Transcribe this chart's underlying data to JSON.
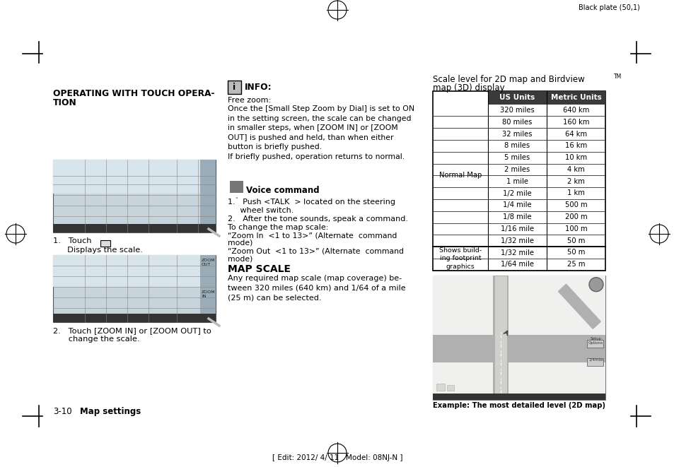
{
  "page_bg": "#ffffff",
  "top_text": "Black plate (50,1)",
  "bottom_text": "[ Edit: 2012/ 4/ 11   Model: 08NJ-N ]",
  "left_col": {
    "title_line1": "OPERATING WITH TOUCH OPERA-",
    "title_line2": "TION",
    "step1_a": "1.   Touch",
    "step1_b": "     Displays the scale.",
    "step2": "2.   Touch [ZOOM IN] or [ZOOM OUT] to\n      change the scale.",
    "footer_num": "3-10",
    "footer_label": "  Map settings"
  },
  "mid_col": {
    "info_title": "INFO:",
    "free_zoom_label": "Free zoom:",
    "free_zoom_body": "Once the [Small Step Zoom by Dial] is set to ON\nin the setting screen, the scale can be changed\nin smaller steps, when [ZOOM IN] or [ZOOM\nOUT] is pushed and held, than when either\nbutton is briefly pushed.\nIf briefly pushed, operation returns to normal.",
    "voice_title": "Voice command",
    "step1": "1.   Push <TALK  > located on the steering\n     wheel switch.",
    "step2": "2.   After the tone sounds, speak a command.",
    "zoom_label": "To change the map scale:",
    "zoom_in_a": "“Zoom In  <1 to 13>” (Alternate  command",
    "zoom_in_b": "mode)",
    "zoom_out_a": "“Zoom Out  <1 to 13>” (Alternate  command",
    "zoom_out_b": "mode)",
    "map_scale_title": "MAP SCALE",
    "map_scale_body": "Any required map scale (map coverage) be-\ntween 320 miles (640 km) and 1/64 of a mile\n(25 m) can be selected."
  },
  "right_col": {
    "scale_title_line1": "Scale level for 2D map and Birdview",
    "scale_title_line2": "map (3D) display",
    "col1_header": "US Units",
    "col2_header": "Metric Units",
    "row_label1": "Normal Map",
    "rows_normal": [
      [
        "320 miles",
        "640 km"
      ],
      [
        "80 miles",
        "160 km"
      ],
      [
        "32 miles",
        "64 km"
      ],
      [
        "8 miles",
        "16 km"
      ],
      [
        "5 miles",
        "10 km"
      ],
      [
        "2 miles",
        "4 km"
      ],
      [
        "1 mile",
        "2 km"
      ],
      [
        "1/2 mile",
        "1 km"
      ],
      [
        "1/4 mile",
        "500 m"
      ],
      [
        "1/8 mile",
        "200 m"
      ],
      [
        "1/16 mile",
        "100 m"
      ],
      [
        "1/32 mile",
        "50 m"
      ]
    ],
    "row_label2_lines": [
      "Shows build-",
      "ing footprint",
      "graphics"
    ],
    "rows_building": [
      [
        "1/32 mile",
        "50 m"
      ],
      [
        "1/64 mile",
        "25 m"
      ]
    ],
    "example_caption": "Example: The most detailed level (2D map)"
  }
}
